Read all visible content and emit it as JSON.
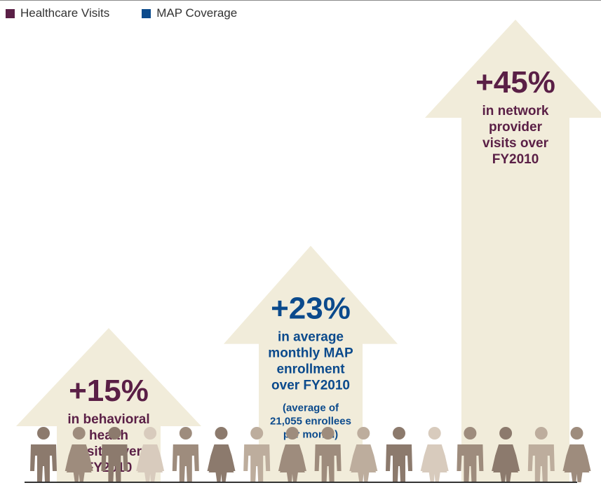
{
  "legend": [
    {
      "label": "Healthcare Visits",
      "color": "#5a1f46"
    },
    {
      "label": "MAP Coverage",
      "color": "#0b4a8c"
    }
  ],
  "colors": {
    "arrow_fill": "#f1ecda",
    "baseline": "#333333",
    "people": [
      "#8c7a6d",
      "#9e8c7d",
      "#bdad9d",
      "#d8cbbd"
    ]
  },
  "chart_data": {
    "type": "bar",
    "categories": [
      "Behavioral health visits",
      "Average monthly MAP enrollment",
      "Network provider visits"
    ],
    "values": [
      15,
      23,
      45
    ],
    "unit": "% increase over FY2010",
    "series_of_each": [
      "Healthcare Visits",
      "MAP Coverage",
      "Healthcare Visits"
    ],
    "bars": [
      {
        "pct": "+15%",
        "desc_lines": [
          "in behavioral",
          "health",
          "visits over",
          "FY2010"
        ],
        "note_lines": [],
        "series": "Healthcare Visits"
      },
      {
        "pct": "+23%",
        "desc_lines": [
          "in average",
          "monthly MAP",
          "enrollment",
          "over FY2010"
        ],
        "note_lines": [
          "(average of",
          "21,055 enrollees",
          "per month)"
        ],
        "series": "MAP Coverage"
      },
      {
        "pct": "+45%",
        "desc_lines": [
          "in network",
          "provider",
          "visits over",
          "FY2010"
        ],
        "note_lines": [],
        "series": "Healthcare Visits"
      }
    ]
  }
}
